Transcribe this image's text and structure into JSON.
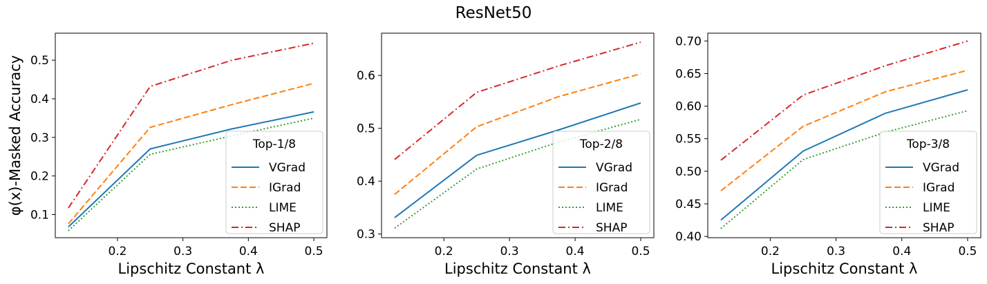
{
  "figure": {
    "title": "ResNet50"
  },
  "series_styles": [
    {
      "name": "VGrad",
      "color": "#1f77b4",
      "dash": ""
    },
    {
      "name": "IGrad",
      "color": "#ff7f0e",
      "dash": "9,4"
    },
    {
      "name": "LIME",
      "color": "#2ca02c",
      "dash": "2,3"
    },
    {
      "name": "SHAP",
      "color": "#d62728",
      "dash": "10,4,2,4"
    }
  ],
  "chart_data": [
    {
      "type": "line",
      "title": "",
      "xlabel": "Lipschitz Constant λ",
      "ylabel": "φ(x)-Masked Accuracy",
      "xlim": [
        0.105,
        0.52
      ],
      "ylim": [
        0.04,
        0.57
      ],
      "xticks": [
        0.2,
        0.3,
        0.4,
        0.5
      ],
      "xtick_labels": [
        "0.2",
        "0.3",
        "0.4",
        "0.5"
      ],
      "yticks": [
        0.1,
        0.2,
        0.3,
        0.4,
        0.5
      ],
      "ytick_labels": [
        "0.1",
        "0.2",
        "0.3",
        "0.4",
        "0.5"
      ],
      "x": [
        0.125,
        0.25,
        0.375,
        0.5
      ],
      "legend_title": "Top-1/8",
      "legend_loc": "lower right",
      "grid": false,
      "series": [
        {
          "name": "VGrad",
          "values": [
            0.068,
            0.27,
            0.322,
            0.366
          ]
        },
        {
          "name": "IGrad",
          "values": [
            0.076,
            0.326,
            0.385,
            0.44
          ]
        },
        {
          "name": "LIME",
          "values": [
            0.058,
            0.256,
            0.304,
            0.35
          ]
        },
        {
          "name": "SHAP",
          "values": [
            0.117,
            0.432,
            0.5,
            0.544
          ]
        }
      ]
    },
    {
      "type": "line",
      "title": "",
      "xlabel": "Lipschitz Constant λ",
      "ylabel": "",
      "xlim": [
        0.105,
        0.52
      ],
      "ylim": [
        0.293,
        0.68
      ],
      "xticks": [
        0.2,
        0.3,
        0.4,
        0.5
      ],
      "xtick_labels": [
        "0.2",
        "0.3",
        "0.4",
        "0.5"
      ],
      "yticks": [
        0.3,
        0.4,
        0.5,
        0.6
      ],
      "ytick_labels": [
        "0.3",
        "0.4",
        "0.5",
        "0.6"
      ],
      "x": [
        0.125,
        0.25,
        0.375,
        0.5
      ],
      "legend_title": "Top-2/8",
      "legend_loc": "lower right",
      "grid": false,
      "series": [
        {
          "name": "VGrad",
          "values": [
            0.331,
            0.449,
            0.497,
            0.548
          ]
        },
        {
          "name": "IGrad",
          "values": [
            0.375,
            0.503,
            0.56,
            0.603
          ]
        },
        {
          "name": "LIME",
          "values": [
            0.311,
            0.423,
            0.474,
            0.517
          ]
        },
        {
          "name": "SHAP",
          "values": [
            0.441,
            0.568,
            0.618,
            0.663
          ]
        }
      ]
    },
    {
      "type": "line",
      "title": "",
      "xlabel": "Lipschitz Constant λ",
      "ylabel": "",
      "xlim": [
        0.105,
        0.52
      ],
      "ylim": [
        0.398,
        0.712
      ],
      "xticks": [
        0.2,
        0.3,
        0.4,
        0.5
      ],
      "xtick_labels": [
        "0.2",
        "0.3",
        "0.4",
        "0.5"
      ],
      "yticks": [
        0.4,
        0.45,
        0.5,
        0.55,
        0.6,
        0.65,
        0.7
      ],
      "ytick_labels": [
        "0.40",
        "0.45",
        "0.50",
        "0.55",
        "0.60",
        "0.65",
        "0.70"
      ],
      "x": [
        0.125,
        0.25,
        0.375,
        0.5
      ],
      "legend_title": "Top-3/8",
      "legend_loc": "lower right",
      "grid": false,
      "series": [
        {
          "name": "VGrad",
          "values": [
            0.425,
            0.531,
            0.589,
            0.625
          ]
        },
        {
          "name": "IGrad",
          "values": [
            0.47,
            0.569,
            0.622,
            0.655
          ]
        },
        {
          "name": "LIME",
          "values": [
            0.412,
            0.518,
            0.56,
            0.593
          ]
        },
        {
          "name": "SHAP",
          "values": [
            0.517,
            0.617,
            0.662,
            0.7
          ]
        }
      ]
    }
  ]
}
